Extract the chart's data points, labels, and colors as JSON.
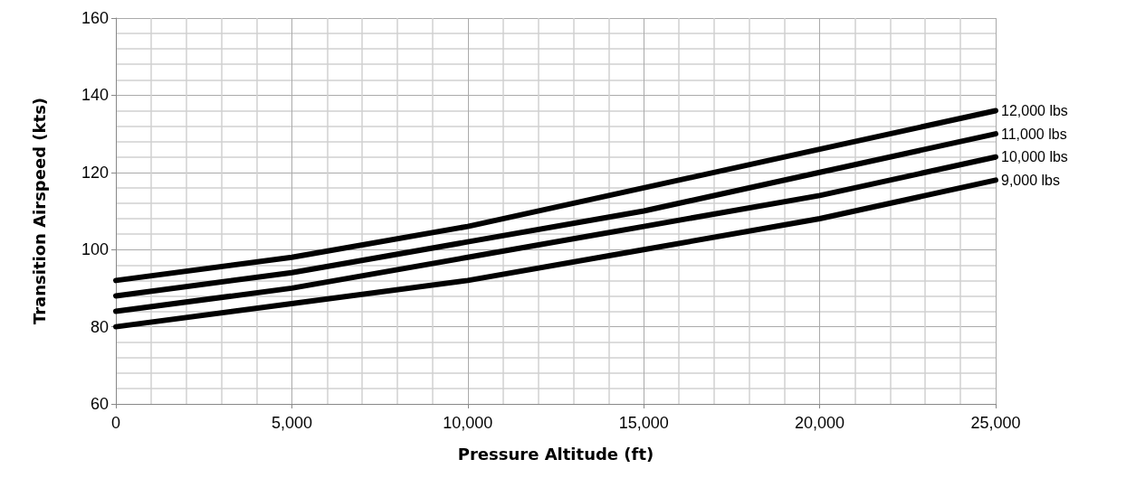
{
  "chart_data": {
    "type": "line",
    "xlabel": "Pressure Altitude (ft)",
    "ylabel": "Transition Airspeed (kts)",
    "x": [
      0,
      5000,
      10000,
      15000,
      20000,
      25000
    ],
    "series": [
      {
        "name": "12,000 lbs",
        "color": "#000000",
        "values": [
          92,
          98,
          106,
          116,
          126,
          136
        ]
      },
      {
        "name": "11,000 lbs",
        "color": "#000000",
        "values": [
          88,
          94,
          102,
          110,
          120,
          130
        ]
      },
      {
        "name": "10,000 lbs",
        "color": "#000000",
        "values": [
          84,
          90,
          98,
          106,
          114,
          124
        ]
      },
      {
        "name": "9,000 lbs",
        "color": "#000000",
        "values": [
          80,
          86,
          92,
          100,
          108,
          118
        ]
      }
    ],
    "xlim": [
      0,
      25000
    ],
    "xticks": [
      {
        "value": 0,
        "label": "0"
      },
      {
        "value": 5000,
        "label": "5,000"
      },
      {
        "value": 10000,
        "label": "10,000"
      },
      {
        "value": 15000,
        "label": "15,000"
      },
      {
        "value": 20000,
        "label": "20,000"
      },
      {
        "value": 25000,
        "label": "25,000"
      }
    ],
    "ylim": [
      60,
      160
    ],
    "yticks": [
      60,
      80,
      100,
      120,
      140,
      160
    ],
    "grid": true,
    "legend": false,
    "marker": "none",
    "line_style": "solid"
  }
}
